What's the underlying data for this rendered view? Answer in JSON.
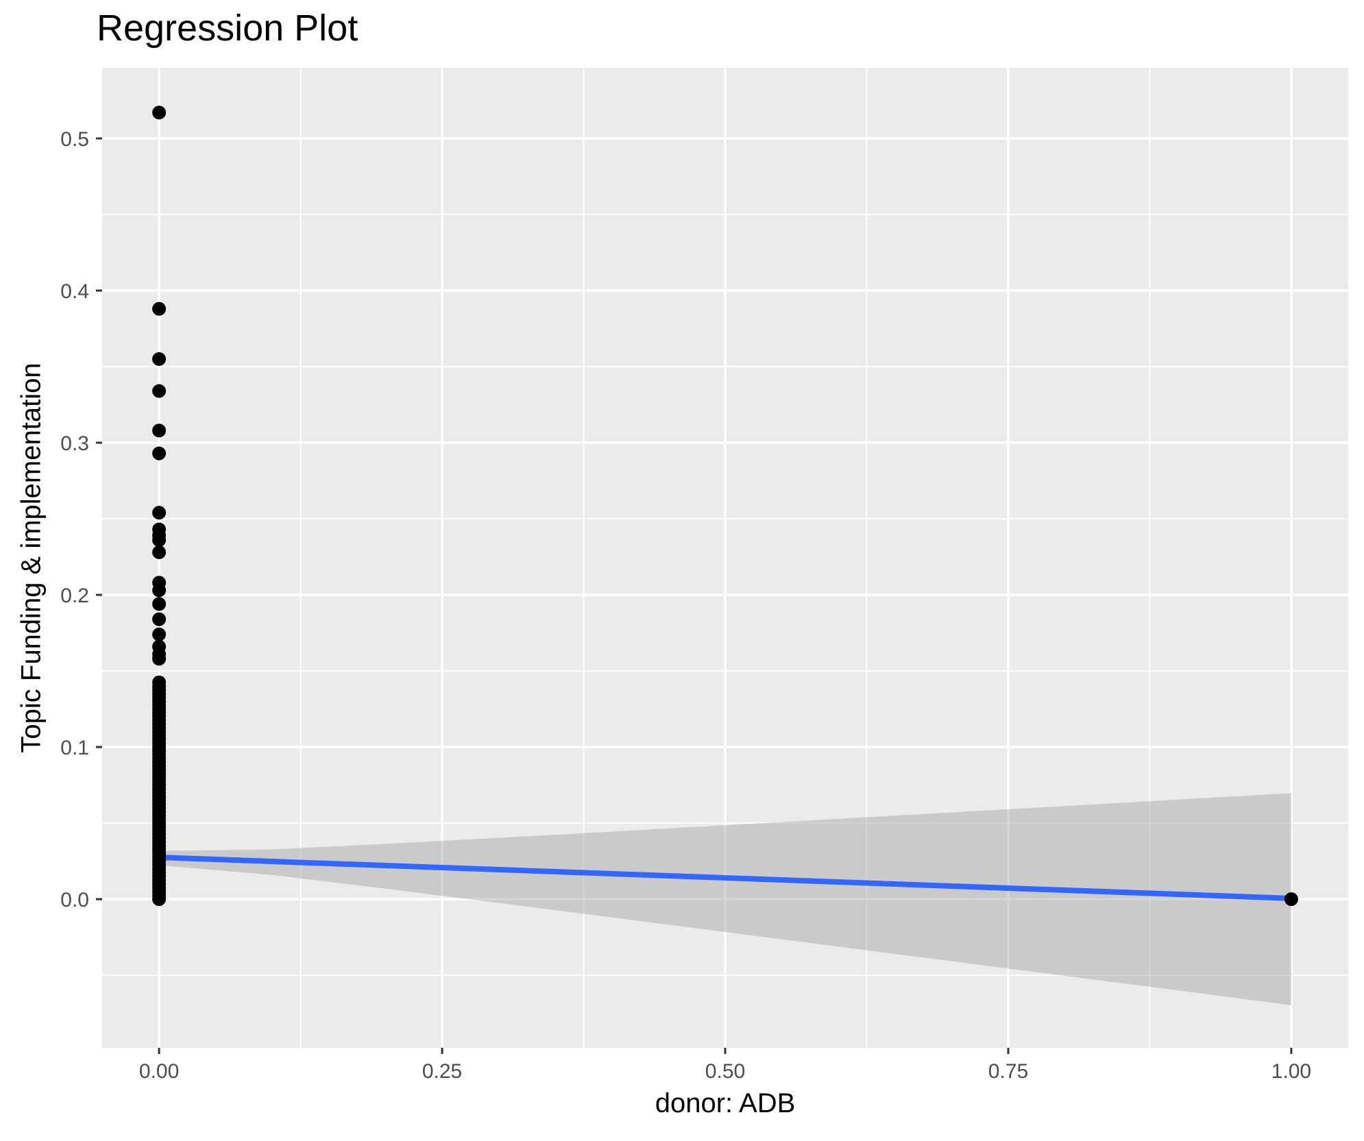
{
  "chart_data": {
    "type": "scatter",
    "title": "Regression Plot",
    "xlabel": "donor: ADB",
    "ylabel": "Topic Funding & implementation",
    "grid": true,
    "legend": false,
    "xlim": [
      -0.0503,
      1.0503
    ],
    "ylim": [
      -0.0977,
      0.5464
    ],
    "x_tick_values": [
      0,
      0.25,
      0.5,
      0.75,
      1
    ],
    "x_tick_labels": [
      "0.00",
      "0.25",
      "0.50",
      "0.75",
      "1.00"
    ],
    "x_minor_values": [
      0.125,
      0.375,
      0.625,
      0.875
    ],
    "y_tick_values": [
      0,
      0.1,
      0.2,
      0.3,
      0.4,
      0.5
    ],
    "y_tick_labels": [
      "0.0",
      "0.1",
      "0.2",
      "0.3",
      "0.4",
      "0.5"
    ],
    "y_minor_values": [
      -0.05,
      0.05,
      0.15,
      0.25,
      0.35,
      0.45
    ],
    "series": [
      {
        "name": "observations-at-x0",
        "type": "points",
        "x": 0,
        "color": "#000000",
        "values": [
          0.517,
          0.388,
          0.355,
          0.334,
          0.308,
          0.293,
          0.254,
          0.243,
          0.239,
          0.236,
          0.228,
          0.208,
          0.203,
          0.194,
          0.184,
          0.174,
          0.166,
          0.161,
          0.158,
          0.1425,
          0.14,
          0.1375,
          0.135,
          0.1325,
          0.13,
          0.1275,
          0.125,
          0.1225,
          0.12,
          0.1175,
          0.115,
          0.1125,
          0.11,
          0.1075,
          0.105,
          0.1025,
          0.1,
          0.0975,
          0.095,
          0.0925,
          0.09,
          0.0875,
          0.085,
          0.0825,
          0.08,
          0.0775,
          0.075,
          0.0725,
          0.07,
          0.0675,
          0.065,
          0.0625,
          0.06,
          0.0575,
          0.055,
          0.0525,
          0.05,
          0.0475,
          0.045,
          0.0425,
          0.04,
          0.0375,
          0.035,
          0.0325,
          0.03,
          0.0275,
          0.025,
          0.0225,
          0.02,
          0.0175,
          0.015,
          0.0125,
          0.01,
          0.0075,
          0.005,
          0.0025,
          0.0
        ]
      },
      {
        "name": "observations-at-x1",
        "type": "points",
        "x": 1,
        "color": "#000000",
        "values": [
          0.0
        ]
      },
      {
        "name": "regression-fit",
        "type": "line",
        "color": "#3366FF",
        "x": [
          0,
          1
        ],
        "y": [
          0.0275,
          0.0005
        ]
      },
      {
        "name": "confidence-band",
        "type": "band",
        "color": "rgba(153,153,153,0.4)",
        "x": [
          0,
          0.1,
          0.2,
          0.3,
          0.4,
          0.5,
          0.6,
          0.7,
          0.8,
          0.9,
          1.0
        ],
        "top": [
          0.0317,
          0.0327,
          0.0363,
          0.0403,
          0.0444,
          0.0486,
          0.0528,
          0.057,
          0.0612,
          0.0654,
          0.0697
        ],
        "bottom": [
          0.0223,
          0.0159,
          0.0069,
          -0.0025,
          -0.012,
          -0.0216,
          -0.0312,
          -0.0408,
          -0.0504,
          -0.06,
          -0.0697
        ]
      }
    ],
    "colors": {
      "panel_background": "#EBEBEB",
      "grid_major": "#FFFFFF",
      "grid_minor": "#FFFFFF",
      "tick_mark": "#333333",
      "tick_label": "#4d4d4d",
      "point": "#000000",
      "fit_line": "#3366FF",
      "band": "rgba(153,153,153,0.4)",
      "title_text": "#000000"
    }
  }
}
